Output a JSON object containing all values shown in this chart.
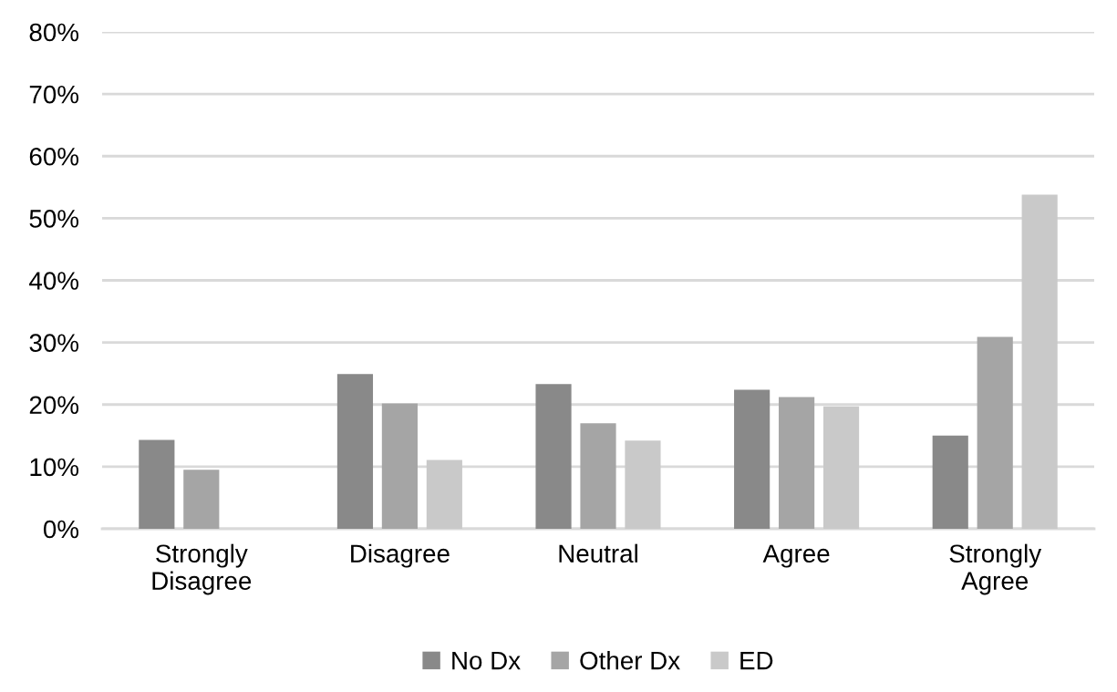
{
  "chart_data": {
    "type": "bar",
    "categories": [
      "Strongly\nDisagree",
      "Disagree",
      "Neutral",
      "Agree",
      "Strongly\nAgree"
    ],
    "series": [
      {
        "name": "No Dx",
        "color": "#898989",
        "values": [
          0.143,
          0.249,
          0.233,
          0.224,
          0.15
        ]
      },
      {
        "name": "Other Dx",
        "color": "#a5a5a5",
        "values": [
          0.095,
          0.202,
          0.17,
          0.212,
          0.309
        ]
      },
      {
        "name": "ED",
        "color": "#c9c9c9",
        "values": [
          0,
          0.111,
          0.142,
          0.197,
          0.538
        ]
      }
    ],
    "ylim": [
      0,
      0.8
    ],
    "yticks": [
      {
        "value": 0,
        "label": "0%"
      },
      {
        "value": 0.1,
        "label": "10%"
      },
      {
        "value": 0.2,
        "label": "20%"
      },
      {
        "value": 0.3,
        "label": "30%"
      },
      {
        "value": 0.4,
        "label": "40%"
      },
      {
        "value": 0.5,
        "label": "50%"
      },
      {
        "value": 0.6,
        "label": "60%"
      },
      {
        "value": 0.7,
        "label": "70%"
      },
      {
        "value": 0.8,
        "label": "80%"
      }
    ],
    "grid": "y",
    "legend": "bottom"
  }
}
